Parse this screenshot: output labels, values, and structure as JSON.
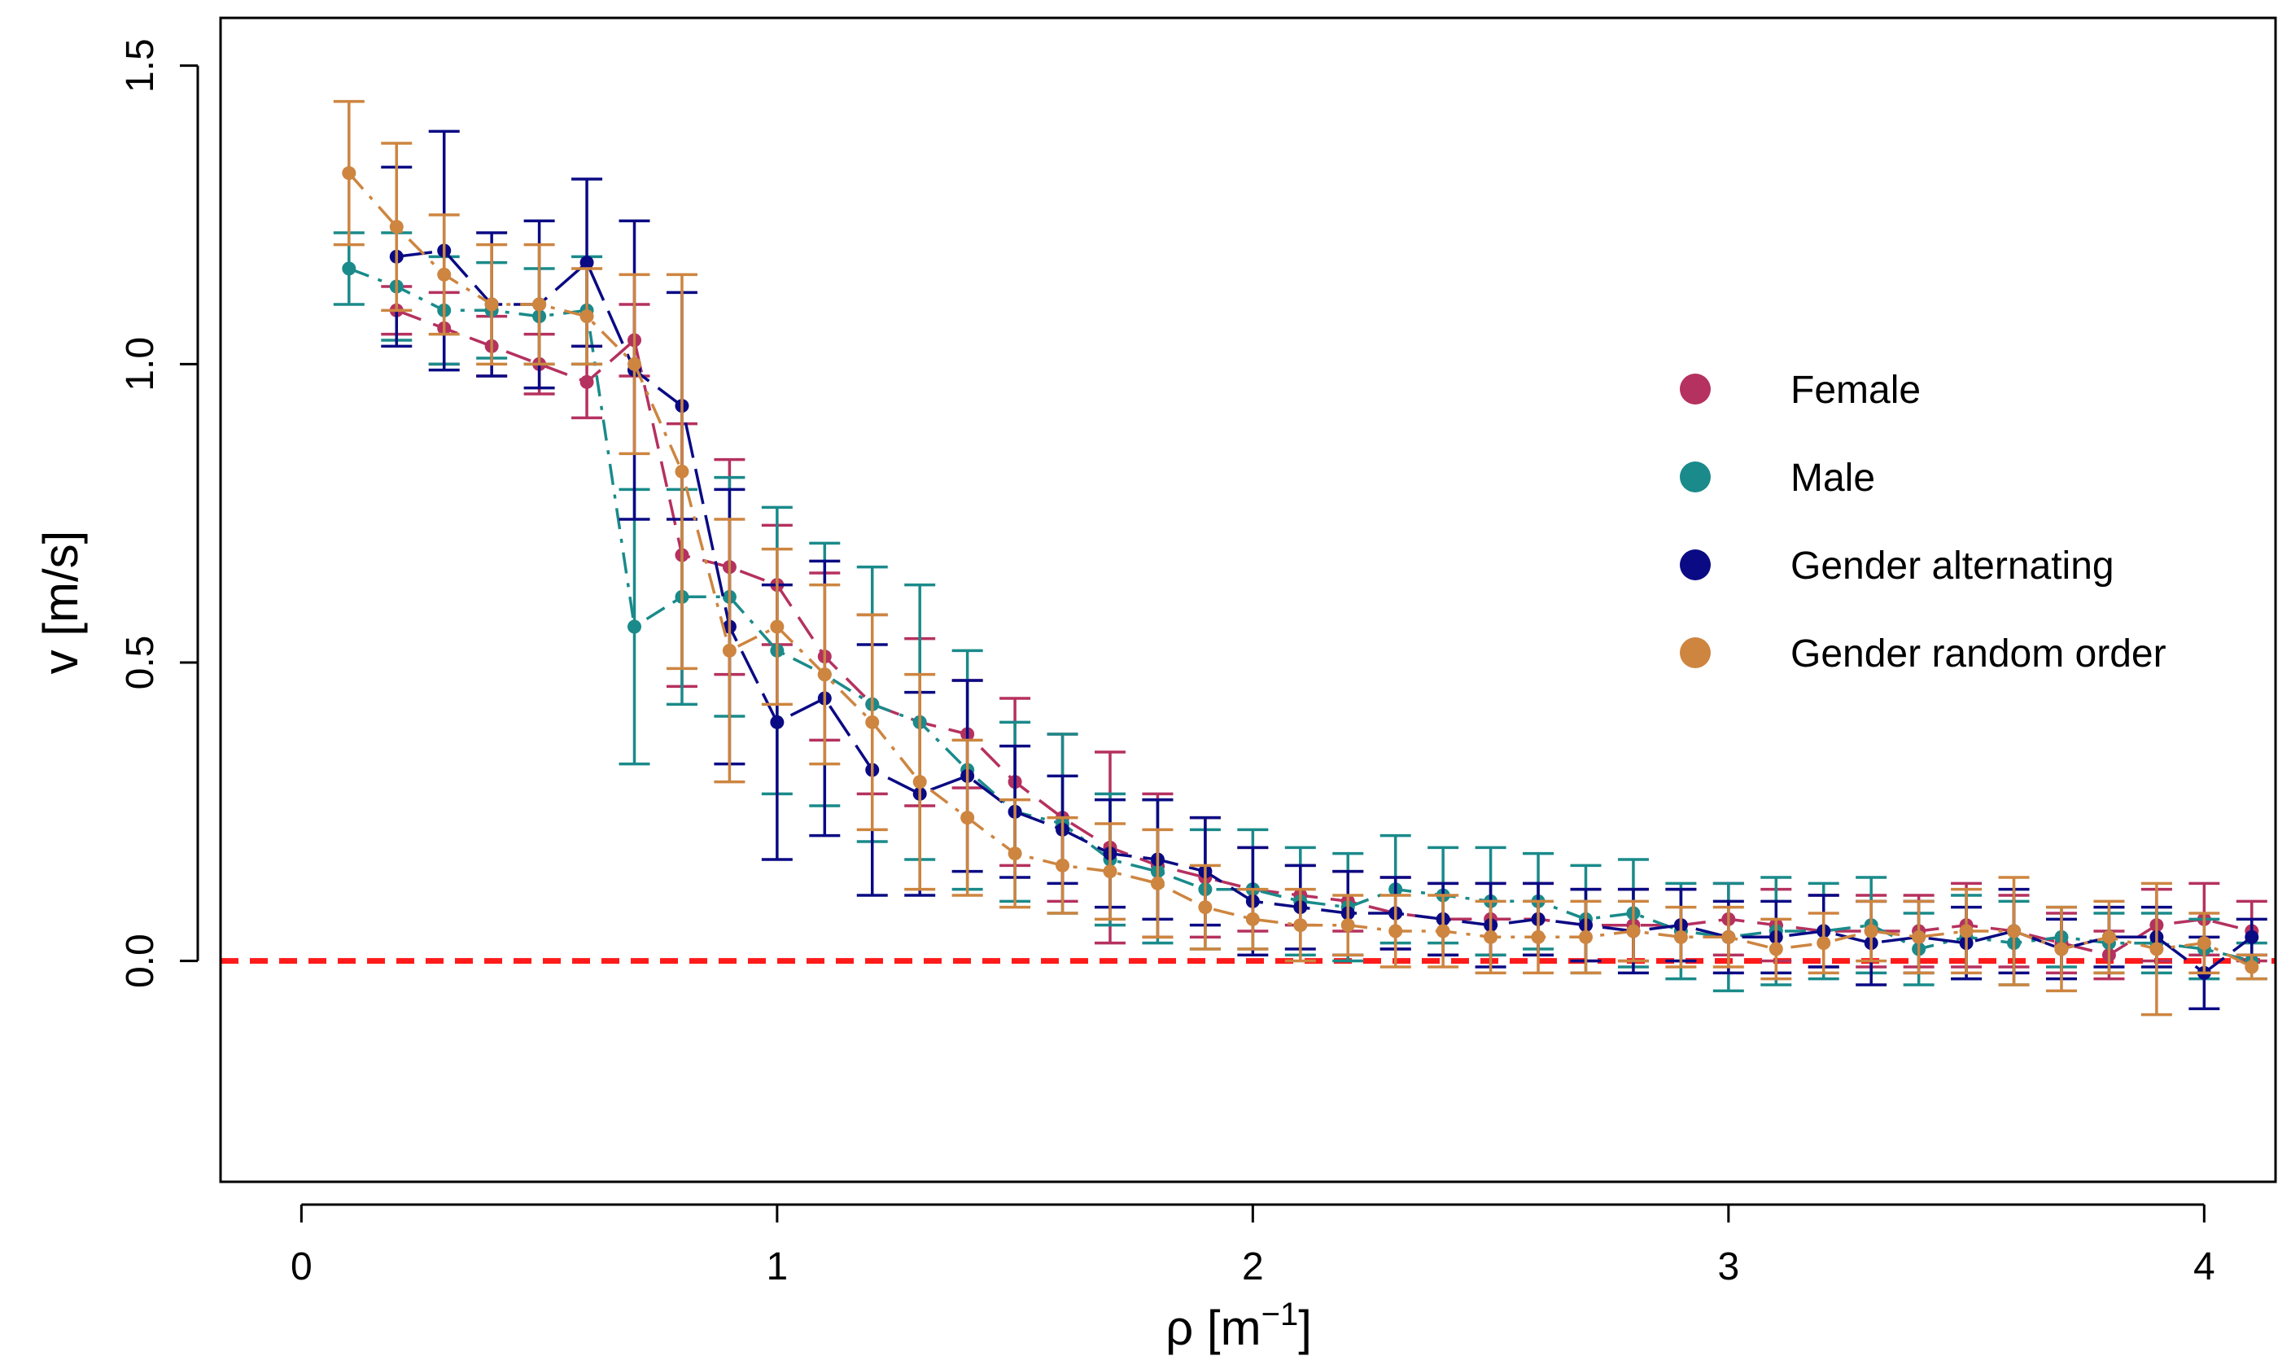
{
  "chart_data": {
    "type": "scatter",
    "title": "",
    "xlabel": "ρ [m",
    "xlabel_sup": "−1",
    "xlabel_close": "]",
    "ylabel": "v [m/s]",
    "xlim": [
      -0.17,
      4.15
    ],
    "ylim": [
      -0.37,
      1.58
    ],
    "x_ticks": [
      0,
      1,
      2,
      3,
      4
    ],
    "x_tick_labels": [
      "0",
      "1",
      "2",
      "3",
      "4"
    ],
    "y_ticks": [
      0.0,
      0.5,
      1.0,
      1.5
    ],
    "y_tick_labels": [
      "0.0",
      "0.5",
      "1.0",
      "1.5"
    ],
    "reference_line": {
      "y": 0.0,
      "color": "#ff1a1a",
      "style": "dashed"
    },
    "legend_position": "right",
    "series": [
      {
        "name": "Female",
        "color": "#b5315f",
        "line_style": "dash",
        "points": [
          [
            0.2,
            1.09,
            0.04
          ],
          [
            0.3,
            1.06,
            0.06
          ],
          [
            0.4,
            1.03,
            0.05
          ],
          [
            0.5,
            1.0,
            0.05
          ],
          [
            0.6,
            0.97,
            0.06
          ],
          [
            0.7,
            1.04,
            0.06
          ],
          [
            0.8,
            0.68,
            0.22
          ],
          [
            0.9,
            0.66,
            0.18
          ],
          [
            1.0,
            0.63,
            0.1
          ],
          [
            1.1,
            0.51,
            0.14
          ],
          [
            1.2,
            0.43,
            0.15
          ],
          [
            1.3,
            0.4,
            0.14
          ],
          [
            1.4,
            0.38,
            0.09
          ],
          [
            1.5,
            0.3,
            0.14
          ],
          [
            1.6,
            0.24,
            0.14
          ],
          [
            1.7,
            0.19,
            0.16
          ],
          [
            1.8,
            0.16,
            0.12
          ],
          [
            1.9,
            0.14,
            0.1
          ],
          [
            2.0,
            0.12,
            0.07
          ],
          [
            2.1,
            0.11,
            0.05
          ],
          [
            2.2,
            0.1,
            0.05
          ],
          [
            2.3,
            0.08,
            0.06
          ],
          [
            2.4,
            0.07,
            0.06
          ],
          [
            2.5,
            0.07,
            0.06
          ],
          [
            2.6,
            0.07,
            0.06
          ],
          [
            2.7,
            0.06,
            0.06
          ],
          [
            2.8,
            0.06,
            0.06
          ],
          [
            2.9,
            0.06,
            0.06
          ],
          [
            3.0,
            0.07,
            0.06
          ],
          [
            3.1,
            0.06,
            0.06
          ],
          [
            3.2,
            0.05,
            0.06
          ],
          [
            3.3,
            0.05,
            0.06
          ],
          [
            3.4,
            0.05,
            0.06
          ],
          [
            3.5,
            0.06,
            0.07
          ],
          [
            3.6,
            0.05,
            0.06
          ],
          [
            3.7,
            0.03,
            0.05
          ],
          [
            3.8,
            0.01,
            0.04
          ],
          [
            3.9,
            0.06,
            0.06
          ],
          [
            4.0,
            0.07,
            0.06
          ],
          [
            4.1,
            0.05,
            0.05
          ]
        ]
      },
      {
        "name": "Male",
        "color": "#1a8a8a",
        "line_style": "dashdot",
        "points": [
          [
            0.1,
            1.16,
            0.06
          ],
          [
            0.2,
            1.13,
            0.09
          ],
          [
            0.3,
            1.09,
            0.09
          ],
          [
            0.4,
            1.09,
            0.08
          ],
          [
            0.5,
            1.08,
            0.08
          ],
          [
            0.6,
            1.09,
            0.09
          ],
          [
            0.7,
            0.56,
            0.23
          ],
          [
            0.8,
            0.61,
            0.18
          ],
          [
            0.9,
            0.61,
            0.2
          ],
          [
            1.0,
            0.52,
            0.24
          ],
          [
            1.1,
            0.48,
            0.22
          ],
          [
            1.2,
            0.43,
            0.23
          ],
          [
            1.3,
            0.4,
            0.23
          ],
          [
            1.4,
            0.32,
            0.2
          ],
          [
            1.5,
            0.25,
            0.15
          ],
          [
            1.6,
            0.23,
            0.15
          ],
          [
            1.7,
            0.17,
            0.11
          ],
          [
            1.8,
            0.15,
            0.12
          ],
          [
            1.9,
            0.12,
            0.1
          ],
          [
            2.0,
            0.12,
            0.1
          ],
          [
            2.1,
            0.1,
            0.09
          ],
          [
            2.2,
            0.09,
            0.09
          ],
          [
            2.3,
            0.12,
            0.09
          ],
          [
            2.4,
            0.11,
            0.08
          ],
          [
            2.5,
            0.1,
            0.09
          ],
          [
            2.6,
            0.1,
            0.08
          ],
          [
            2.7,
            0.07,
            0.09
          ],
          [
            2.8,
            0.08,
            0.09
          ],
          [
            2.9,
            0.05,
            0.08
          ],
          [
            3.0,
            0.04,
            0.09
          ],
          [
            3.1,
            0.05,
            0.09
          ],
          [
            3.2,
            0.05,
            0.08
          ],
          [
            3.3,
            0.06,
            0.08
          ],
          [
            3.4,
            0.02,
            0.06
          ],
          [
            3.5,
            0.04,
            0.07
          ],
          [
            3.6,
            0.03,
            0.07
          ],
          [
            3.7,
            0.04,
            0.05
          ],
          [
            3.8,
            0.03,
            0.05
          ],
          [
            3.9,
            0.03,
            0.05
          ],
          [
            4.0,
            0.02,
            0.05
          ],
          [
            4.1,
            0.0,
            0.03
          ]
        ]
      },
      {
        "name": "Gender alternating",
        "color": "#0a0a84",
        "line_style": "longdash",
        "points": [
          [
            0.2,
            1.18,
            0.15
          ],
          [
            0.3,
            1.19,
            0.2
          ],
          [
            0.4,
            1.1,
            0.12
          ],
          [
            0.5,
            1.1,
            0.14
          ],
          [
            0.6,
            1.17,
            0.14
          ],
          [
            0.7,
            0.99,
            0.25
          ],
          [
            0.8,
            0.93,
            0.19
          ],
          [
            0.9,
            0.56,
            0.23
          ],
          [
            1.0,
            0.4,
            0.23
          ],
          [
            1.1,
            0.44,
            0.23
          ],
          [
            1.2,
            0.32,
            0.21
          ],
          [
            1.3,
            0.28,
            0.17
          ],
          [
            1.4,
            0.31,
            0.16
          ],
          [
            1.5,
            0.25,
            0.11
          ],
          [
            1.6,
            0.22,
            0.09
          ],
          [
            1.7,
            0.18,
            0.09
          ],
          [
            1.8,
            0.17,
            0.1
          ],
          [
            1.9,
            0.15,
            0.09
          ],
          [
            2.0,
            0.1,
            0.09
          ],
          [
            2.1,
            0.09,
            0.07
          ],
          [
            2.2,
            0.08,
            0.07
          ],
          [
            2.3,
            0.08,
            0.06
          ],
          [
            2.4,
            0.07,
            0.06
          ],
          [
            2.5,
            0.06,
            0.07
          ],
          [
            2.6,
            0.07,
            0.06
          ],
          [
            2.7,
            0.06,
            0.06
          ],
          [
            2.8,
            0.05,
            0.07
          ],
          [
            2.9,
            0.06,
            0.06
          ],
          [
            3.0,
            0.04,
            0.06
          ],
          [
            3.1,
            0.04,
            0.06
          ],
          [
            3.2,
            0.05,
            0.06
          ],
          [
            3.3,
            0.03,
            0.07
          ],
          [
            3.4,
            0.04,
            0.06
          ],
          [
            3.5,
            0.03,
            0.06
          ],
          [
            3.6,
            0.05,
            0.07
          ],
          [
            3.7,
            0.02,
            0.05
          ],
          [
            3.8,
            0.04,
            0.05
          ],
          [
            3.9,
            0.04,
            0.05
          ],
          [
            4.0,
            -0.02,
            0.06
          ],
          [
            4.1,
            0.04,
            0.03
          ]
        ]
      },
      {
        "name": "Gender random order",
        "color": "#cd8540",
        "line_style": "dashdot",
        "points": [
          [
            0.1,
            1.32,
            0.12
          ],
          [
            0.2,
            1.23,
            0.14
          ],
          [
            0.3,
            1.15,
            0.1
          ],
          [
            0.4,
            1.1,
            0.1
          ],
          [
            0.5,
            1.1,
            0.1
          ],
          [
            0.6,
            1.08,
            0.08
          ],
          [
            0.7,
            1.0,
            0.15
          ],
          [
            0.8,
            0.82,
            0.33
          ],
          [
            0.9,
            0.52,
            0.22
          ],
          [
            1.0,
            0.56,
            0.13
          ],
          [
            1.1,
            0.48,
            0.15
          ],
          [
            1.2,
            0.4,
            0.18
          ],
          [
            1.3,
            0.3,
            0.18
          ],
          [
            1.4,
            0.24,
            0.13
          ],
          [
            1.5,
            0.18,
            0.09
          ],
          [
            1.6,
            0.16,
            0.08
          ],
          [
            1.7,
            0.15,
            0.08
          ],
          [
            1.8,
            0.13,
            0.09
          ],
          [
            1.9,
            0.09,
            0.07
          ],
          [
            2.0,
            0.07,
            0.05
          ],
          [
            2.1,
            0.06,
            0.06
          ],
          [
            2.2,
            0.06,
            0.05
          ],
          [
            2.3,
            0.05,
            0.06
          ],
          [
            2.4,
            0.05,
            0.06
          ],
          [
            2.5,
            0.04,
            0.06
          ],
          [
            2.6,
            0.04,
            0.06
          ],
          [
            2.7,
            0.04,
            0.06
          ],
          [
            2.8,
            0.05,
            0.05
          ],
          [
            2.9,
            0.04,
            0.05
          ],
          [
            3.0,
            0.04,
            0.05
          ],
          [
            3.1,
            0.02,
            0.05
          ],
          [
            3.2,
            0.03,
            0.05
          ],
          [
            3.3,
            0.05,
            0.05
          ],
          [
            3.4,
            0.04,
            0.06
          ],
          [
            3.5,
            0.05,
            0.07
          ],
          [
            3.6,
            0.05,
            0.09
          ],
          [
            3.7,
            0.02,
            0.07
          ],
          [
            3.8,
            0.04,
            0.06
          ],
          [
            3.9,
            0.02,
            0.11
          ],
          [
            4.0,
            0.03,
            0.05
          ],
          [
            4.1,
            -0.01,
            0.02
          ]
        ]
      }
    ]
  }
}
